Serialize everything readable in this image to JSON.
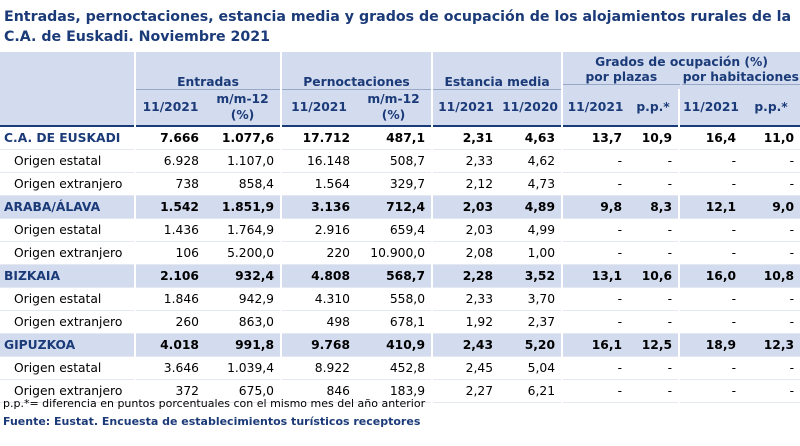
{
  "title": "Entradas, pernoctaciones, estancia media y grados de ocupación de los alojamientos rurales de la C.A. de Euskadi.  Noviembre 2021",
  "headers": {
    "entradas": "Entradas",
    "pernoctaciones": "Pernoctaciones",
    "estancia": "Estancia media",
    "grados": "Grados de ocupación (%)",
    "por_plazas": "por plazas",
    "por_habitaciones": "por habitaciones",
    "col_11_2021": "11/2021",
    "col_11_2020": "11/2020",
    "col_mm12_a": "m/m-12",
    "col_mm12_b": "(%)",
    "col_pp": "p.p.*"
  },
  "rows": [
    {
      "kind": "total",
      "label": "C.A. DE EUSKADI",
      "v": [
        "7.666",
        "1.077,6",
        "17.712",
        "487,1",
        "2,31",
        "4,63",
        "13,7",
        "10,9",
        "16,4",
        "11,0"
      ]
    },
    {
      "kind": "sub",
      "label": "Origen estatal",
      "v": [
        "6.928",
        "1.107,0",
        "16.148",
        "508,7",
        "2,33",
        "4,62",
        "-",
        "-",
        "-",
        "-"
      ]
    },
    {
      "kind": "sub",
      "label": "Origen extranjero",
      "v": [
        "738",
        "858,4",
        "1.564",
        "329,7",
        "2,12",
        "4,73",
        "-",
        "-",
        "-",
        "-"
      ]
    },
    {
      "kind": "region",
      "label": "ARABA/ÁLAVA",
      "v": [
        "1.542",
        "1.851,9",
        "3.136",
        "712,4",
        "2,03",
        "4,89",
        "9,8",
        "8,3",
        "12,1",
        "9,0"
      ]
    },
    {
      "kind": "sub",
      "label": "Origen estatal",
      "v": [
        "1.436",
        "1.764,9",
        "2.916",
        "659,4",
        "2,03",
        "4,99",
        "-",
        "-",
        "-",
        "-"
      ]
    },
    {
      "kind": "sub",
      "label": "Origen extranjero",
      "v": [
        "106",
        "5.200,0",
        "220",
        "10.900,0",
        "2,08",
        "1,00",
        "-",
        "-",
        "-",
        "-"
      ]
    },
    {
      "kind": "region",
      "label": "BIZKAIA",
      "v": [
        "2.106",
        "932,4",
        "4.808",
        "568,7",
        "2,28",
        "3,52",
        "13,1",
        "10,6",
        "16,0",
        "10,8"
      ]
    },
    {
      "kind": "sub",
      "label": "Origen estatal",
      "v": [
        "1.846",
        "942,9",
        "4.310",
        "558,0",
        "2,33",
        "3,70",
        "-",
        "-",
        "-",
        "-"
      ]
    },
    {
      "kind": "sub",
      "label": "Origen extranjero",
      "v": [
        "260",
        "863,0",
        "498",
        "678,1",
        "1,92",
        "2,37",
        "-",
        "-",
        "-",
        "-"
      ]
    },
    {
      "kind": "region",
      "label": "GIPUZKOA",
      "v": [
        "4.018",
        "991,8",
        "9.768",
        "410,9",
        "2,43",
        "5,20",
        "16,1",
        "12,5",
        "18,9",
        "12,3"
      ]
    },
    {
      "kind": "sub",
      "label": "Origen estatal",
      "v": [
        "3.646",
        "1.039,4",
        "8.922",
        "452,8",
        "2,45",
        "5,04",
        "-",
        "-",
        "-",
        "-"
      ]
    },
    {
      "kind": "sub",
      "label": "Origen extranjero",
      "v": [
        "372",
        "675,0",
        "846",
        "183,9",
        "2,27",
        "6,21",
        "-",
        "-",
        "-",
        "-"
      ]
    }
  ],
  "footnote": "p.p.*= diferencia en puntos porcentuales con el mismo mes del año anterior",
  "source": "Fuente: Eustat. Encuesta de establecimientos turísticos receptores"
}
